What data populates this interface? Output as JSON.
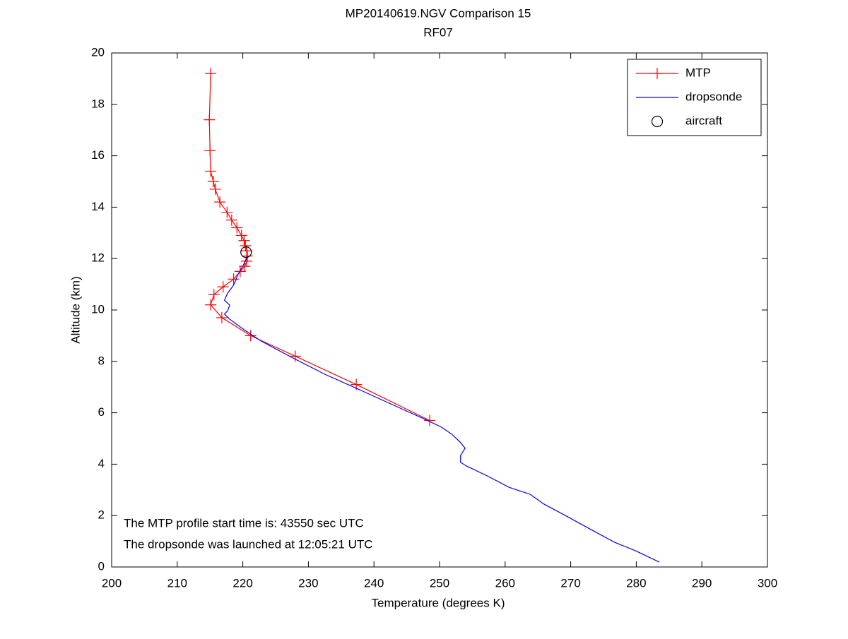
{
  "chart_data": {
    "type": "line",
    "title": "MP20140619.NGV Comparison 15",
    "subtitle": "RF07",
    "x_label": "Temperature (degrees K)",
    "y_label": "Altitude (km)",
    "xlim": [
      200,
      300
    ],
    "xticks": [
      200,
      210,
      220,
      230,
      240,
      250,
      260,
      270,
      280,
      290,
      300
    ],
    "ylim": [
      0,
      20
    ],
    "yticks": [
      0,
      2,
      4,
      6,
      8,
      10,
      12,
      14,
      16,
      18,
      20
    ],
    "grid": false,
    "legend": "upper right",
    "series": [
      {
        "name": "MTP",
        "color": "#ff0000",
        "marker": "plus",
        "line": true,
        "x": [
          215.1,
          214.9,
          215.0,
          215.1,
          215.5,
          215.8,
          216.5,
          217.6,
          218.3,
          219.1,
          219.8,
          220.2,
          220.4,
          220.6,
          220.7,
          220.6,
          220.3,
          219.6,
          218.6,
          217.0,
          215.6,
          215.1,
          216.8,
          221.2,
          228.0,
          237.3,
          248.5
        ],
        "y": [
          19.2,
          17.4,
          16.2,
          15.4,
          15.0,
          14.7,
          14.2,
          13.8,
          13.5,
          13.2,
          12.9,
          12.7,
          12.5,
          12.3,
          12.1,
          11.9,
          11.7,
          11.5,
          11.2,
          10.9,
          10.6,
          10.2,
          9.7,
          9.0,
          8.2,
          7.1,
          5.7
        ]
      },
      {
        "name": "dropsonde",
        "color": "#0000ff",
        "marker": "none",
        "line": true,
        "x": [
          283.5,
          279.9,
          276.7,
          273.5,
          269.2,
          265.9,
          263.8,
          260.6,
          257.3,
          254.1,
          253.2,
          253.2,
          253.9,
          253.2,
          251.9,
          250.3,
          248.1,
          243.3,
          236.9,
          232.5,
          227.2,
          222.8,
          220.2,
          218.0,
          217.2,
          217.7,
          218.0,
          217.2,
          217.7,
          218.5,
          218.9,
          219.2,
          219.8,
          220.4,
          220.6
        ],
        "y": [
          0.19,
          0.63,
          0.96,
          1.4,
          2.0,
          2.45,
          2.83,
          3.1,
          3.54,
          3.93,
          4.07,
          4.34,
          4.62,
          4.84,
          5.16,
          5.44,
          5.71,
          6.26,
          7.0,
          7.5,
          8.19,
          8.79,
          9.23,
          9.64,
          9.84,
          9.97,
          10.19,
          10.38,
          10.66,
          10.93,
          11.13,
          11.35,
          11.62,
          11.9,
          12.1
        ]
      },
      {
        "name": "aircraft",
        "color": "#000000",
        "marker": "circle",
        "line": false,
        "x": [
          220.5
        ],
        "y": [
          12.25
        ]
      }
    ],
    "annotations": [
      "The MTP profile start time is: 43550 sec UTC",
      "The dropsonde was launched at 12:05:21 UTC"
    ]
  }
}
